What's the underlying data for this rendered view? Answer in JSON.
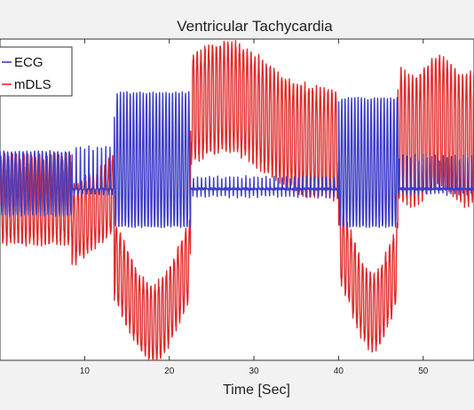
{
  "chart_data": {
    "type": "line",
    "title": "Ventricular Tachycardia",
    "xlabel": "Time  [Sec]",
    "ylabel": "",
    "xlim": [
      0,
      56
    ],
    "ylim": [
      -1.6,
      1.4
    ],
    "x_ticks": [
      10,
      20,
      30,
      40,
      50
    ],
    "y_ticks": [],
    "grid": false,
    "legend": {
      "placement": "top-left",
      "entries": [
        "ECG",
        "mDLS"
      ]
    },
    "series": [
      {
        "name": "ECG",
        "color": "#3d3dc8",
        "description_segments": [
          {
            "t_start": 0,
            "t_end": 8.5,
            "behavior": "tachycardia oscillation, peaks ~0.35 troughs ~-0.25"
          },
          {
            "t_start": 8.5,
            "t_end": 13.5,
            "behavior": "baseline with spikes peaking ~0.35 and troughs ~-0.05"
          },
          {
            "t_start": 13.5,
            "t_end": 22.5,
            "behavior": "ventricular tachycardia burst, peaks ~0.9 troughs ~-0.35"
          },
          {
            "t_start": 22.5,
            "t_end": 40.0,
            "behavior": "narrow spikes ~0.1 about baseline 0"
          },
          {
            "t_start": 40.0,
            "t_end": 47.0,
            "behavior": "ventricular tachycardia burst, peaks ~0.85 troughs ~-0.35"
          },
          {
            "t_start": 47.0,
            "t_end": 56.0,
            "behavior": "narrow spikes ~0.3 about baseline 0"
          }
        ]
      },
      {
        "name": "mDLS",
        "color": "#e02a2a",
        "description_segments": [
          {
            "t_start": 0,
            "t_end": 8.5,
            "behavior": "oscillation between ~-0.5 and ~0.3"
          },
          {
            "t_start": 8.5,
            "t_end": 13.5,
            "behavior": "oscillation drifting from ~-0.6 to ~0.1"
          },
          {
            "t_start": 13.5,
            "t_end": 22.5,
            "behavior": "deep dip, trough ~-1.55 at t~18, peaks ~-0.2"
          },
          {
            "t_start": 22.5,
            "t_end": 40.0,
            "behavior": "large oscillation, peaks up to ~1.2 at t~27, troughs ~-0.1"
          },
          {
            "t_start": 40.0,
            "t_end": 47.0,
            "behavior": "deep dip, trough ~-1.4 at t~44"
          },
          {
            "t_start": 47.0,
            "t_end": 56.0,
            "behavior": "large oscillation, peaks up to ~1.3 troughs ~-0.2"
          }
        ]
      }
    ]
  }
}
